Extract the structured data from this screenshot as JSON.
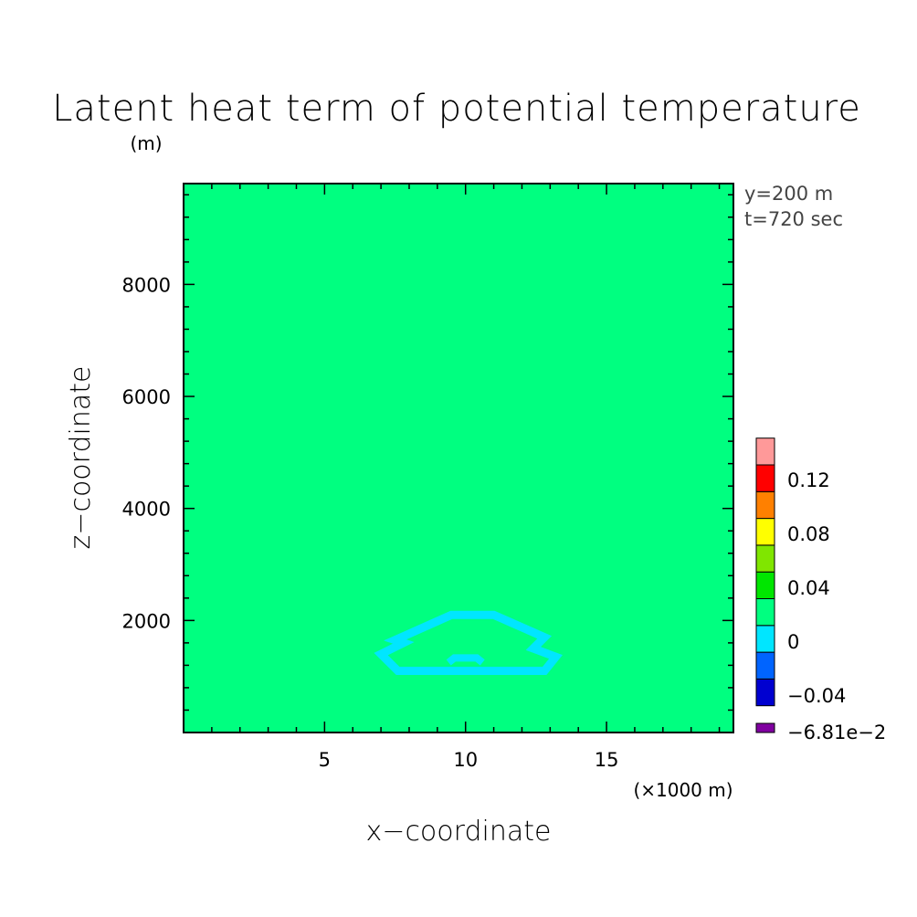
{
  "chart_data": {
    "type": "heatmap",
    "title": "Latent heat term of potential temperature",
    "xlabel": "x−coordinate",
    "ylabel": "z−coordinate",
    "x_unit": "(×1000 m)",
    "y_unit": "(m)",
    "xlim": [
      0,
      19.5
    ],
    "ylim": [
      0,
      9800
    ],
    "x_ticks": [
      5,
      10,
      15
    ],
    "x_tick_labels": [
      "5",
      "10",
      "15"
    ],
    "y_ticks": [
      2000,
      4000,
      6000,
      8000
    ],
    "y_tick_labels": [
      "2000",
      "4000",
      "6000",
      "8000"
    ],
    "info_lines": [
      "y=200 m",
      "t=720 sec"
    ],
    "background_level_color": "#00ff80",
    "field": {
      "description_level": "-0.02 to 0 (cyan)",
      "negative_region_color": "#00e6ff",
      "outline": [
        [
          7.0,
          1400
        ],
        [
          7.8,
          1600
        ],
        [
          7.5,
          1650
        ],
        [
          9.5,
          2100
        ],
        [
          11.0,
          2100
        ],
        [
          12.8,
          1700
        ],
        [
          12.4,
          1500
        ],
        [
          13.2,
          1350
        ],
        [
          12.8,
          1100
        ],
        [
          7.6,
          1100
        ],
        [
          7.0,
          1400
        ]
      ],
      "inner_bump": [
        [
          9.4,
          1250
        ],
        [
          9.6,
          1330
        ],
        [
          10.4,
          1330
        ],
        [
          10.6,
          1250
        ]
      ]
    },
    "colorbar": {
      "levels_colors": [
        "#8000a0",
        "#0000d0",
        "#0064ff",
        "#00e6ff",
        "#00ff80",
        "#00e600",
        "#80e600",
        "#ffff00",
        "#ff8000",
        "#ff0000",
        "#ff9999"
      ],
      "labels": [
        "−6.81e−2",
        "−0.04",
        "0",
        "0.04",
        "0.08",
        "0.12"
      ]
    }
  }
}
